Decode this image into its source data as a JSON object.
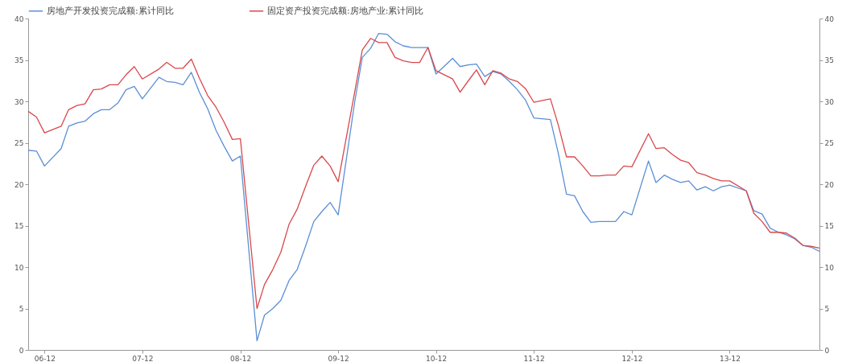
{
  "chart_data": {
    "type": "line",
    "legend": "top",
    "x": [
      "2006-10",
      "2006-11",
      "2006-12",
      "2007-02",
      "2007-03",
      "2007-04",
      "2007-05",
      "2007-06",
      "2007-07",
      "2007-08",
      "2007-09",
      "2007-10",
      "2007-11",
      "2007-12",
      "2008-02",
      "2008-03",
      "2008-04",
      "2008-05",
      "2008-06",
      "2008-07",
      "2008-08",
      "2008-09",
      "2008-10",
      "2008-11",
      "2008-12",
      "2009-02",
      "2009-03",
      "2009-04",
      "2009-05",
      "2009-06",
      "2009-07",
      "2009-08",
      "2009-09",
      "2009-10",
      "2009-11",
      "2009-12",
      "2010-02",
      "2010-03",
      "2010-04",
      "2010-05",
      "2010-06",
      "2010-07",
      "2010-08",
      "2010-09",
      "2010-10",
      "2010-11",
      "2010-12",
      "2011-02",
      "2011-03",
      "2011-04",
      "2011-05",
      "2011-06",
      "2011-07",
      "2011-08",
      "2011-09",
      "2011-10",
      "2011-11",
      "2011-12",
      "2012-02",
      "2012-03",
      "2012-04",
      "2012-05",
      "2012-06",
      "2012-07",
      "2012-08",
      "2012-09",
      "2012-10",
      "2012-11",
      "2012-12",
      "2013-02",
      "2013-03",
      "2013-04",
      "2013-05",
      "2013-06",
      "2013-07",
      "2013-08",
      "2013-09",
      "2013-10",
      "2013-11",
      "2013-12",
      "2014-02",
      "2014-03",
      "2014-04",
      "2014-05",
      "2014-06",
      "2014-07",
      "2014-08",
      "2014-09",
      "2014-10",
      "2014-11"
    ],
    "series": [
      {
        "name": "房地产开发投资完成额:累计同比",
        "color": "#5b8fd6",
        "values": [
          24.1,
          24.0,
          22.2,
          24.3,
          27.0,
          27.4,
          27.6,
          28.5,
          29.0,
          29.0,
          29.8,
          31.4,
          31.8,
          30.3,
          32.9,
          32.4,
          32.3,
          32.0,
          33.5,
          31.1,
          29.1,
          26.5,
          24.6,
          22.8,
          23.4,
          1.1,
          4.2,
          5.0,
          6.0,
          8.4,
          9.7,
          12.5,
          15.5,
          16.7,
          17.8,
          16.3,
          30.0,
          35.3,
          36.4,
          38.2,
          38.1,
          37.2,
          36.7,
          36.5,
          36.5,
          36.5,
          33.3,
          35.2,
          34.2,
          34.4,
          34.5,
          33.0,
          33.6,
          33.3,
          32.4,
          31.4,
          30.1,
          28.0,
          27.8,
          23.8,
          18.8,
          18.6,
          16.7,
          15.4,
          15.5,
          15.5,
          15.5,
          16.7,
          16.3,
          22.8,
          20.2,
          21.1,
          20.6,
          20.2,
          20.4,
          19.3,
          19.7,
          19.2,
          19.7,
          19.9,
          19.2,
          16.8,
          16.4,
          14.7,
          14.2,
          13.9,
          13.4,
          12.6,
          12.4,
          11.9
        ]
      },
      {
        "name": "固定资产投资完成额:房地产业:累计同比",
        "color": "#d9484c",
        "values": [
          28.8,
          28.1,
          26.2,
          27.0,
          29.0,
          29.5,
          29.7,
          31.4,
          31.5,
          32.0,
          32.0,
          33.2,
          34.2,
          32.7,
          33.9,
          34.7,
          34.0,
          34.0,
          35.1,
          32.8,
          30.7,
          29.3,
          27.5,
          25.4,
          25.5,
          5.0,
          7.9,
          9.7,
          11.8,
          15.2,
          17.0,
          19.7,
          22.3,
          23.4,
          22.2,
          20.3,
          31.2,
          36.2,
          37.6,
          37.1,
          37.1,
          35.3,
          34.9,
          34.7,
          34.7,
          36.5,
          33.7,
          32.7,
          31.1,
          32.5,
          33.8,
          32.0,
          33.7,
          33.4,
          32.7,
          32.4,
          31.5,
          29.9,
          30.3,
          27.2,
          23.3,
          23.3,
          22.2,
          21.0,
          21.0,
          21.1,
          21.1,
          22.2,
          22.1,
          26.1,
          24.3,
          24.4,
          23.6,
          22.9,
          22.6,
          21.4,
          21.1,
          20.7,
          20.4,
          20.4,
          19.2,
          16.5,
          15.5,
          14.2,
          14.2,
          14.1,
          13.5,
          12.6,
          12.5,
          12.3
        ]
      }
    ],
    "xlim": [
      "2006-10",
      "2014-11"
    ],
    "xticks": [
      {
        "value": "2006-12",
        "label": "06-12"
      },
      {
        "value": "2007-12",
        "label": "07-12"
      },
      {
        "value": "2008-12",
        "label": "08-12"
      },
      {
        "value": "2009-12",
        "label": "09-12"
      },
      {
        "value": "2010-12",
        "label": "10-12"
      },
      {
        "value": "2011-12",
        "label": "11-12"
      },
      {
        "value": "2012-12",
        "label": "12-12"
      },
      {
        "value": "2013-12",
        "label": "13-12"
      }
    ],
    "ylim": [
      0,
      40
    ],
    "yticks": [
      0,
      5,
      10,
      15,
      20,
      25,
      30,
      35,
      40
    ],
    "y2lim": [
      0,
      40
    ],
    "y2ticks": [
      0,
      5,
      10,
      15,
      20,
      25,
      30,
      35,
      40
    ]
  }
}
